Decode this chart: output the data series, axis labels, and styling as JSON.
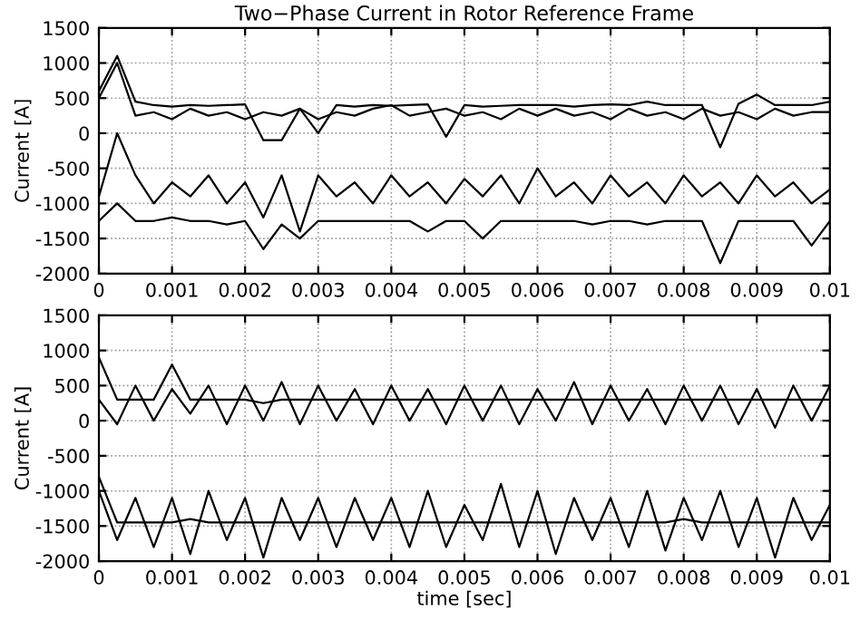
{
  "chart_data": [
    {
      "type": "line",
      "title": "Two−Phase Current in Rotor Reference Frame",
      "ylabel": "Current [A]",
      "x": [
        0,
        0.00025,
        0.0005,
        0.00075,
        0.001,
        0.00125,
        0.0015,
        0.00175,
        0.002,
        0.00225,
        0.0025,
        0.00275,
        0.003,
        0.00325,
        0.0035,
        0.00375,
        0.004,
        0.00425,
        0.0045,
        0.00475,
        0.005,
        0.00525,
        0.0055,
        0.00575,
        0.006,
        0.00625,
        0.0065,
        0.00675,
        0.007,
        0.00725,
        0.0075,
        0.00775,
        0.008,
        0.00825,
        0.0085,
        0.00875,
        0.009,
        0.00925,
        0.0095,
        0.00975,
        0.01
      ],
      "series": [
        {
          "color": "#000000",
          "values": [
            600,
            1100,
            450,
            400,
            380,
            400,
            390,
            400,
            410,
            -100,
            -100,
            350,
            0,
            400,
            380,
            400,
            390,
            400,
            410,
            -50,
            400,
            380,
            390,
            400,
            400,
            400,
            380,
            400,
            410,
            400,
            450,
            400,
            400,
            400,
            -200,
            420,
            550,
            400,
            400,
            400,
            450
          ]
        },
        {
          "color": "#000000",
          "values": [
            500,
            1000,
            250,
            300,
            200,
            350,
            250,
            300,
            200,
            300,
            250,
            350,
            200,
            300,
            250,
            350,
            400,
            250,
            300,
            350,
            250,
            300,
            200,
            350,
            250,
            350,
            250,
            300,
            200,
            350,
            250,
            300,
            200,
            350,
            250,
            300,
            200,
            350,
            250,
            300,
            300
          ]
        },
        {
          "color": "#000000",
          "values": [
            -900,
            0,
            -600,
            -1000,
            -700,
            -900,
            -600,
            -1000,
            -700,
            -1200,
            -600,
            -1400,
            -600,
            -900,
            -700,
            -1000,
            -600,
            -900,
            -700,
            -1000,
            -650,
            -900,
            -600,
            -1000,
            -500,
            -900,
            -700,
            -1000,
            -600,
            -900,
            -700,
            -1000,
            -600,
            -900,
            -700,
            -1000,
            -600,
            -900,
            -700,
            -1000,
            -800
          ]
        },
        {
          "color": "#000000",
          "values": [
            -1250,
            -1000,
            -1250,
            -1250,
            -1200,
            -1250,
            -1250,
            -1300,
            -1250,
            -1650,
            -1300,
            -1500,
            -1250,
            -1250,
            -1250,
            -1250,
            -1250,
            -1250,
            -1400,
            -1250,
            -1250,
            -1500,
            -1250,
            -1250,
            -1250,
            -1250,
            -1250,
            -1300,
            -1250,
            -1250,
            -1300,
            -1250,
            -1250,
            -1250,
            -1850,
            -1250,
            -1250,
            -1250,
            -1250,
            -1600,
            -1250
          ]
        }
      ],
      "xlim": [
        0,
        0.01
      ],
      "xticks": [
        0,
        0.001,
        0.002,
        0.003,
        0.004,
        0.005,
        0.006,
        0.007,
        0.008,
        0.009,
        0.01
      ],
      "ylim": [
        -2000,
        1500
      ],
      "yticks": [
        -2000,
        -1500,
        -1000,
        -500,
        0,
        500,
        1000,
        1500
      ],
      "grid": true,
      "line_style": "solid",
      "marker": "none"
    },
    {
      "type": "line",
      "xlabel": "time [sec]",
      "ylabel": "Current [A]",
      "x": [
        0,
        0.00025,
        0.0005,
        0.00075,
        0.001,
        0.00125,
        0.0015,
        0.00175,
        0.002,
        0.00225,
        0.0025,
        0.00275,
        0.003,
        0.00325,
        0.0035,
        0.00375,
        0.004,
        0.00425,
        0.0045,
        0.00475,
        0.005,
        0.00525,
        0.0055,
        0.00575,
        0.006,
        0.00625,
        0.0065,
        0.00675,
        0.007,
        0.00725,
        0.0075,
        0.00775,
        0.008,
        0.00825,
        0.0085,
        0.00875,
        0.009,
        0.00925,
        0.0095,
        0.00975,
        0.01
      ],
      "series": [
        {
          "color": "#000000",
          "values": [
            900,
            300,
            300,
            300,
            800,
            300,
            300,
            300,
            300,
            250,
            300,
            300,
            300,
            300,
            300,
            300,
            300,
            300,
            300,
            300,
            300,
            300,
            300,
            300,
            300,
            300,
            300,
            300,
            300,
            300,
            300,
            300,
            300,
            300,
            300,
            300,
            300,
            300,
            300,
            300,
            300
          ]
        },
        {
          "color": "#000000",
          "values": [
            300,
            -50,
            500,
            0,
            450,
            100,
            500,
            -50,
            500,
            0,
            550,
            -50,
            500,
            0,
            450,
            -50,
            500,
            0,
            450,
            -50,
            500,
            0,
            500,
            -50,
            450,
            0,
            550,
            -50,
            500,
            0,
            450,
            -50,
            500,
            0,
            500,
            -50,
            450,
            -100,
            500,
            0,
            500
          ]
        },
        {
          "color": "#000000",
          "values": [
            -800,
            -1450,
            -1450,
            -1450,
            -1450,
            -1400,
            -1450,
            -1450,
            -1450,
            -1450,
            -1450,
            -1450,
            -1450,
            -1450,
            -1450,
            -1450,
            -1450,
            -1450,
            -1450,
            -1450,
            -1450,
            -1450,
            -1450,
            -1450,
            -1450,
            -1450,
            -1450,
            -1450,
            -1450,
            -1450,
            -1450,
            -1450,
            -1400,
            -1450,
            -1450,
            -1450,
            -1450,
            -1450,
            -1450,
            -1450,
            -1450
          ]
        },
        {
          "color": "#000000",
          "values": [
            -1000,
            -1700,
            -1100,
            -1800,
            -1100,
            -1900,
            -1000,
            -1700,
            -1100,
            -1950,
            -1100,
            -1700,
            -1100,
            -1800,
            -1100,
            -1700,
            -1100,
            -1800,
            -1000,
            -1800,
            -1200,
            -1700,
            -900,
            -1800,
            -1000,
            -1900,
            -1100,
            -1700,
            -1100,
            -1800,
            -1000,
            -1850,
            -1100,
            -1700,
            -1000,
            -1800,
            -1100,
            -1950,
            -1100,
            -1700,
            -1200
          ]
        }
      ],
      "xlim": [
        0,
        0.01
      ],
      "xticks": [
        0,
        0.001,
        0.002,
        0.003,
        0.004,
        0.005,
        0.006,
        0.007,
        0.008,
        0.009,
        0.01
      ],
      "ylim": [
        -2000,
        1500
      ],
      "yticks": [
        -2000,
        -1500,
        -1000,
        -500,
        0,
        500,
        1000,
        1500
      ],
      "grid": true,
      "line_style": "solid",
      "marker": "none"
    }
  ]
}
